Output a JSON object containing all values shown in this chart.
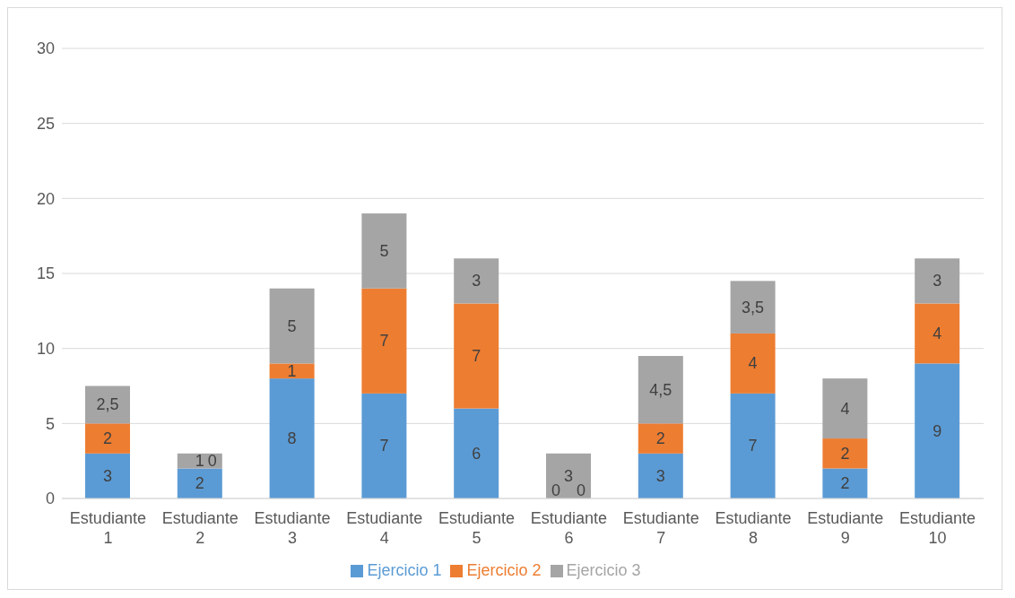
{
  "chart_data": {
    "type": "bar",
    "stacked": true,
    "categories": [
      "Estudiante 1",
      "Estudiante 2",
      "Estudiante 3",
      "Estudiante 4",
      "Estudiante 5",
      "Estudiante 6",
      "Estudiante 7",
      "Estudiante 8",
      "Estudiante 9",
      "Estudiante 10"
    ],
    "series": [
      {
        "name": "Ejercicio 1",
        "color": "#5b9bd5",
        "values": [
          3,
          2,
          8,
          7,
          6,
          0,
          3,
          7,
          2,
          9
        ],
        "value_labels": [
          "3",
          "2",
          "8",
          "7",
          "6",
          "0",
          "3",
          "7",
          "2",
          "9"
        ]
      },
      {
        "name": "Ejercicio 2",
        "color": "#ed7d31",
        "values": [
          2,
          0,
          1,
          7,
          7,
          0,
          2,
          4,
          2,
          4
        ],
        "value_labels": [
          "2",
          "0",
          "1",
          "7",
          "7",
          "0",
          "2",
          "4",
          "2",
          "4"
        ]
      },
      {
        "name": "Ejercicio 3",
        "color": "#a5a5a5",
        "values": [
          2.5,
          1,
          5,
          5,
          3,
          3,
          4.5,
          3.5,
          4,
          3
        ],
        "value_labels": [
          "2,5",
          "1",
          "5",
          "5",
          "3",
          "3",
          "4,5",
          "3,5",
          "4",
          "3"
        ]
      }
    ],
    "ylim": [
      0,
      30
    ],
    "yticks": [
      0,
      5,
      10,
      15,
      20,
      25,
      30
    ],
    "grid": "y",
    "legend": "bottom"
  }
}
